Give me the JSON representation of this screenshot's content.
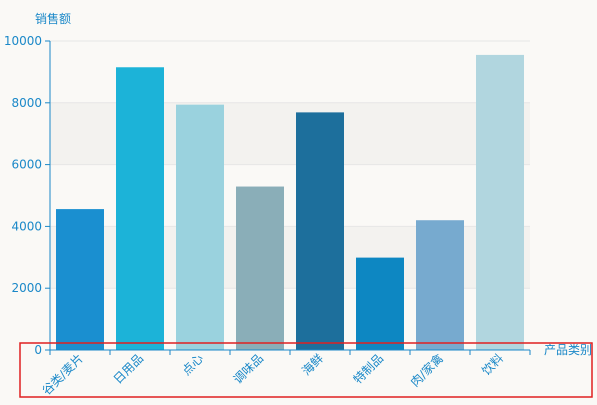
{
  "chart_data": {
    "type": "bar",
    "ylabel": "销售额",
    "xlabel": "产品类别",
    "categories": [
      "谷类/麦片",
      "日用品",
      "点心",
      "调味品",
      "海鲜",
      "特制品",
      "肉/家禽",
      "饮料"
    ],
    "values": [
      4560,
      9150,
      7940,
      5290,
      7690,
      2990,
      4200,
      9550
    ],
    "ylim": [
      0,
      10000
    ],
    "yticks": [
      0,
      2000,
      4000,
      6000,
      8000,
      10000
    ],
    "bar_colors": [
      "#1a8fd0",
      "#1cb3d8",
      "#9ad2de",
      "#8aaeb8",
      "#1d6f9c",
      "#0d87c2",
      "#77aacf",
      "#b1d6df"
    ],
    "axis_color": "#1a88c8",
    "band_colors": [
      "#faf9f6",
      "#f3f2ef"
    ],
    "highlight_color": "#e02020",
    "grid": true
  }
}
